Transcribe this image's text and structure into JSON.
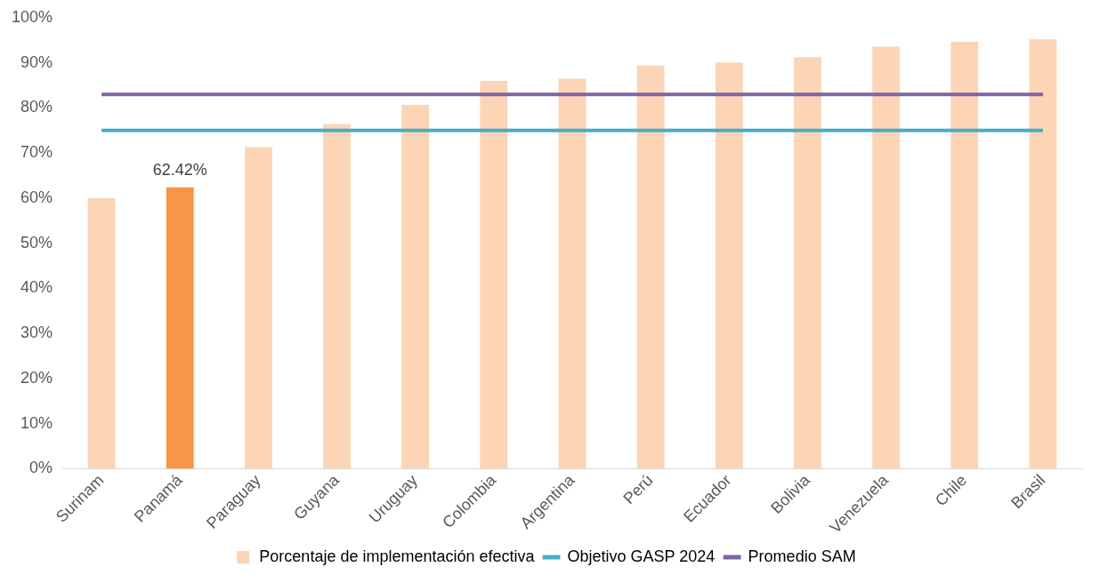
{
  "chart_data": {
    "type": "bar",
    "categories": [
      "Surinam",
      "Panamá",
      "Paraguay",
      "Guyana",
      "Uruguay",
      "Colombia",
      "Argentina",
      "Perú",
      "Ecuador",
      "Bolivia",
      "Venezuela",
      "Chile",
      "Brasil"
    ],
    "series": [
      {
        "name": "Porcentaje de implementación efectiva",
        "color": "#fbd5b5",
        "colors": [
          "#fbd5b5",
          "#f79646",
          "#fbd5b5",
          "#fbd5b5",
          "#fbd5b5",
          "#fbd5b5",
          "#fbd5b5",
          "#fbd5b5",
          "#fbd5b5",
          "#fbd5b5",
          "#fbd5b5",
          "#fbd5b5",
          "#fbd5b5"
        ],
        "values": [
          60,
          62.42,
          71.3,
          76.4,
          80.7,
          86,
          86.5,
          89.4,
          90.1,
          91.3,
          93.6,
          94.7,
          95.2
        ],
        "value_labels": [
          null,
          "62.42%",
          null,
          null,
          null,
          null,
          null,
          null,
          null,
          null,
          null,
          null,
          null
        ]
      },
      {
        "name": "Objetivo GASP 2024",
        "type": "line",
        "color": "#4bacc6",
        "values": [
          75,
          75,
          75,
          75,
          75,
          75,
          75,
          75,
          75,
          75,
          75,
          75,
          75
        ]
      },
      {
        "name": "Promedio SAM",
        "type": "line",
        "color": "#8064a2",
        "values": [
          83,
          83,
          83,
          83,
          83,
          83,
          83,
          83,
          83,
          83,
          83,
          83,
          83
        ]
      }
    ],
    "ylim": [
      0,
      100
    ],
    "yticks": [
      {
        "value": 0,
        "label": "0%"
      },
      {
        "value": 10,
        "label": "10%"
      },
      {
        "value": 20,
        "label": "20%"
      },
      {
        "value": 30,
        "label": "30%"
      },
      {
        "value": 40,
        "label": "40%"
      },
      {
        "value": 50,
        "label": "50%"
      },
      {
        "value": 60,
        "label": "60%"
      },
      {
        "value": 70,
        "label": "70%"
      },
      {
        "value": 80,
        "label": "80%"
      },
      {
        "value": 90,
        "label": "90%"
      },
      {
        "value": 100,
        "label": "100%"
      }
    ],
    "grid": false,
    "legend": "bottom",
    "marker": "none"
  }
}
